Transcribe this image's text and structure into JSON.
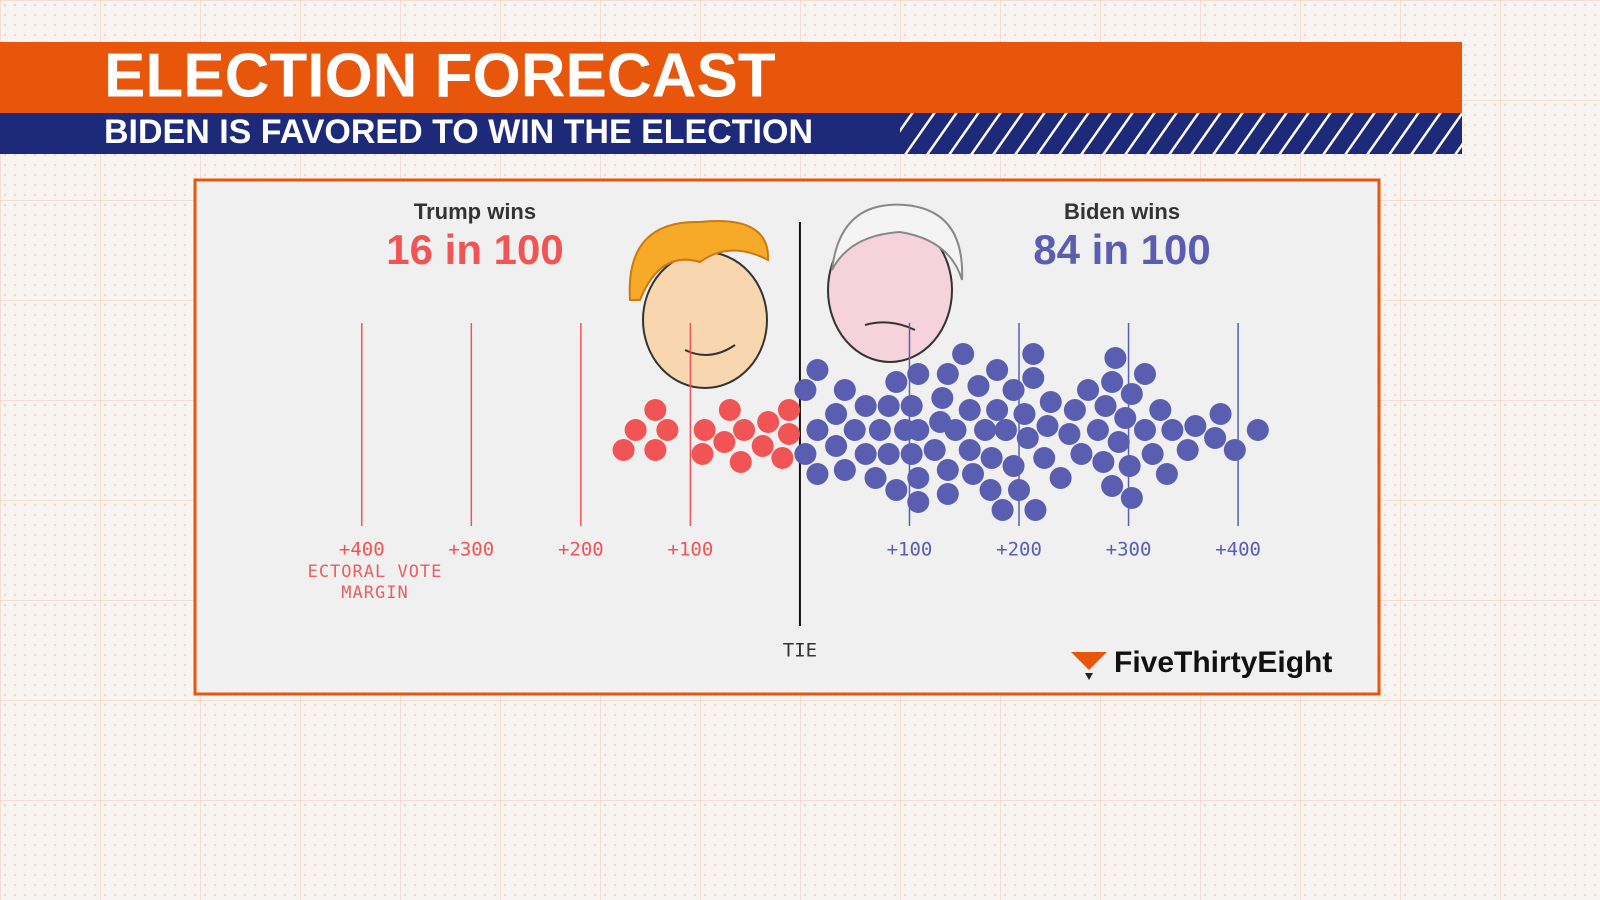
{
  "chart_data": {
    "type": "beeswarm",
    "title": "ELECTION FORECAST",
    "subtitle": "BIDEN IS FAVORED TO WIN THE ELECTION",
    "source": "FiveThirtyEight",
    "xlabel": "ECTORAL VOTE MARGIN",
    "xlim": [
      -450,
      420
    ],
    "xticks": [
      {
        "value": -400,
        "label": "+400"
      },
      {
        "value": -300,
        "label": "+300"
      },
      {
        "value": -200,
        "label": "+200"
      },
      {
        "value": -100,
        "label": "+100"
      },
      {
        "value": 0,
        "label": "TIE"
      },
      {
        "value": 100,
        "label": "+100"
      },
      {
        "value": 200,
        "label": "+200"
      },
      {
        "value": 300,
        "label": "+300"
      },
      {
        "value": 400,
        "label": "+400"
      }
    ],
    "grid": true,
    "series": [
      {
        "name": "Trump wins",
        "summary": "16 in 100",
        "color": "#f05454",
        "values": [
          -150,
          -121,
          -161,
          -132,
          -132,
          -87,
          -89,
          -69,
          -51,
          -64,
          -54,
          -34,
          -29,
          -10,
          -16,
          -10
        ]
      },
      {
        "name": "Biden wins",
        "summary": "84 in 100",
        "color": "#5a5eb0",
        "values": [
          5,
          5,
          16,
          16,
          16,
          33,
          33,
          41,
          41,
          50,
          60,
          60,
          69,
          73,
          81,
          81,
          88,
          88,
          96,
          102,
          102,
          108,
          108,
          108,
          108,
          123,
          128,
          130,
          135,
          135,
          135,
          142,
          149,
          155,
          155,
          158,
          163,
          169,
          174,
          175,
          180,
          180,
          185,
          188,
          188,
          195,
          195,
          200,
          205,
          208,
          213,
          213,
          215,
          223,
          226,
          229,
          238,
          246,
          251,
          257,
          263,
          272,
          277,
          279,
          285,
          285,
          288,
          291,
          297,
          301,
          303,
          303,
          315,
          315,
          322,
          329,
          335,
          340,
          354,
          361,
          379,
          384,
          397,
          418
        ]
      }
    ]
  }
}
